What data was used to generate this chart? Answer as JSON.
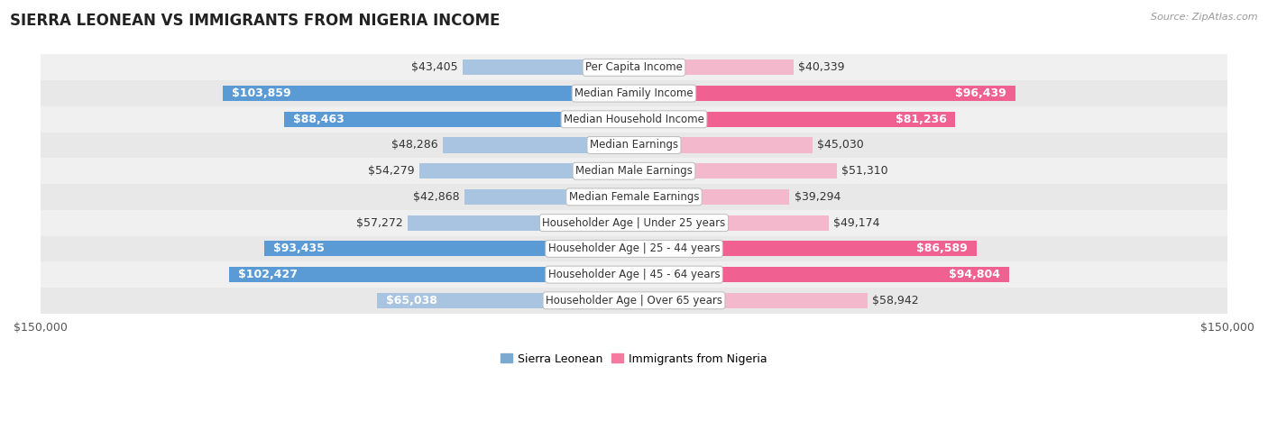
{
  "title": "SIERRA LEONEAN VS IMMIGRANTS FROM NIGERIA INCOME",
  "source": "Source: ZipAtlas.com",
  "categories": [
    "Per Capita Income",
    "Median Family Income",
    "Median Household Income",
    "Median Earnings",
    "Median Male Earnings",
    "Median Female Earnings",
    "Householder Age | Under 25 years",
    "Householder Age | 25 - 44 years",
    "Householder Age | 45 - 64 years",
    "Householder Age | Over 65 years"
  ],
  "sierra_leone_values": [
    43405,
    103859,
    88463,
    48286,
    54279,
    42868,
    57272,
    93435,
    102427,
    65038
  ],
  "nigeria_values": [
    40339,
    96439,
    81236,
    45030,
    51310,
    39294,
    49174,
    86589,
    94804,
    58942
  ],
  "sierra_leone_labels": [
    "$43,405",
    "$103,859",
    "$88,463",
    "$48,286",
    "$54,279",
    "$42,868",
    "$57,272",
    "$93,435",
    "$102,427",
    "$65,038"
  ],
  "nigeria_labels": [
    "$40,339",
    "$96,439",
    "$81,236",
    "$45,030",
    "$51,310",
    "$39,294",
    "$49,174",
    "$86,589",
    "$94,804",
    "$58,942"
  ],
  "max_value": 150000,
  "blue_bar_light": "#a8c4e0",
  "blue_bar_dark": "#5b9bd5",
  "pink_bar_light": "#f4b8cc",
  "pink_bar_dark": "#f06090",
  "blue_legend": "#7aaad0",
  "pink_legend": "#f47aa0",
  "row_bg_colors": [
    "#f0f0f0",
    "#e8e8e8"
  ],
  "bar_height": 0.6,
  "label_fontsize": 9.0,
  "category_fontsize": 8.5,
  "title_fontsize": 12,
  "inside_label_threshold": 65000,
  "dark_bar_threshold": 80000,
  "xlabel_left": "$150,000",
  "xlabel_right": "$150,000"
}
